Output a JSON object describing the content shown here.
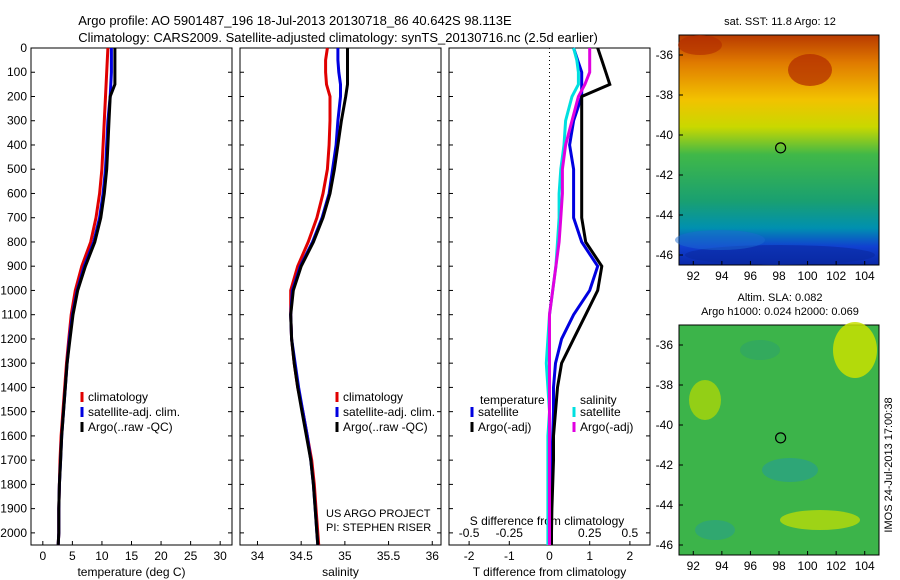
{
  "header": {
    "title_line1": "Argo profile: AO 5901487_196 18-Jul-2013 20130718_86 40.642S 98.113E",
    "title_line2": "Climatology: CARS2009. Satellite-adjusted climatology: synTS_20130716.nc (2.5d earlier)"
  },
  "colors": {
    "climatology": "#e00000",
    "satellite": "#0000e0",
    "argo": "#000000",
    "sal_satellite": "#00e0e0",
    "sal_argo": "#e000e0"
  },
  "side_text": {
    "project": "US ARGO PROJECT",
    "pi": "PI: STEPHEN RISER",
    "imos": "IMOS 24-Jul-2013 17:00:38"
  },
  "chart_data": [
    {
      "type": "line",
      "xlabel": "temperature (deg C)",
      "ylabel": "",
      "xlim": [
        -2,
        32
      ],
      "ylim": [
        2050,
        0
      ],
      "xticks": [
        "0",
        "5",
        "10",
        "15",
        "20",
        "25",
        "30"
      ],
      "yticks": [
        "0",
        "100",
        "200",
        "300",
        "400",
        "500",
        "600",
        "700",
        "800",
        "900",
        "1000",
        "1100",
        "1200",
        "1300",
        "1400",
        "1500",
        "1600",
        "1700",
        "1800",
        "1900",
        "2000"
      ],
      "legend": [
        "climatology",
        "satellite-adj. clim.",
        "Argo(..raw -QC)"
      ],
      "legend_position": "lower-center",
      "depth": [
        0,
        50,
        100,
        150,
        200,
        300,
        400,
        500,
        600,
        700,
        800,
        900,
        1000,
        1100,
        1200,
        1300,
        1400,
        1500,
        1600,
        1700,
        1800,
        1900,
        2000,
        2050
      ],
      "series": [
        {
          "name": "climatology",
          "values": [
            11.0,
            10.9,
            10.8,
            10.7,
            10.6,
            10.4,
            10.2,
            10.0,
            9.6,
            9.0,
            8.1,
            6.6,
            5.5,
            4.8,
            4.4,
            4.0,
            3.7,
            3.4,
            3.1,
            2.9,
            2.8,
            2.7,
            2.7,
            2.6
          ]
        },
        {
          "name": "satellite-adj. clim.",
          "values": [
            11.6,
            11.6,
            11.6,
            11.5,
            11.4,
            11.0,
            10.8,
            10.6,
            10.2,
            9.6,
            8.6,
            7.0,
            5.8,
            5.0,
            4.5,
            4.1,
            3.8,
            3.5,
            3.2,
            3.0,
            2.8,
            2.7,
            2.7,
            2.6
          ]
        },
        {
          "name": "Argo(..raw -QC)",
          "values": [
            12.2,
            12.2,
            12.2,
            12.2,
            11.4,
            11.2,
            11.0,
            10.8,
            10.4,
            9.8,
            8.8,
            7.2,
            5.9,
            5.1,
            4.6,
            4.1,
            3.8,
            3.5,
            3.2,
            3.0,
            2.8,
            2.7,
            2.7,
            2.6
          ]
        }
      ]
    },
    {
      "type": "line",
      "xlabel": "salinity",
      "ylabel": "",
      "xlim": [
        33.8,
        36.1
      ],
      "ylim": [
        2050,
        0
      ],
      "xticks": [
        "34",
        "34.5",
        "35",
        "35.5",
        "36"
      ],
      "legend": [
        "climatology",
        "satellite-adj. clim.",
        "Argo(..raw -QC)"
      ],
      "legend_position": "lower-right",
      "depth": [
        0,
        50,
        100,
        150,
        200,
        300,
        400,
        500,
        600,
        700,
        800,
        900,
        1000,
        1100,
        1200,
        1300,
        1400,
        1500,
        1600,
        1700,
        1800,
        1900,
        2000,
        2050
      ],
      "series": [
        {
          "name": "climatology",
          "values": [
            34.8,
            34.78,
            34.78,
            34.79,
            34.83,
            34.83,
            34.82,
            34.8,
            34.75,
            34.68,
            34.58,
            34.46,
            34.38,
            34.38,
            34.39,
            34.42,
            34.46,
            34.52,
            34.57,
            34.62,
            34.65,
            34.67,
            34.69,
            34.7
          ]
        },
        {
          "name": "satellite-adj. clim.",
          "values": [
            34.92,
            34.92,
            34.93,
            34.95,
            34.95,
            34.92,
            34.9,
            34.86,
            34.82,
            34.74,
            34.63,
            34.49,
            34.4,
            34.38,
            34.39,
            34.43,
            34.47,
            34.52,
            34.57,
            34.61,
            34.64,
            34.66,
            34.68,
            34.69
          ]
        },
        {
          "name": "Argo(..raw -QC)",
          "values": [
            35.03,
            35.03,
            35.03,
            35.03,
            35.01,
            34.96,
            34.92,
            34.88,
            34.83,
            34.75,
            34.64,
            34.5,
            34.41,
            34.38,
            34.39,
            34.42,
            34.46,
            34.51,
            34.56,
            34.61,
            34.64,
            34.66,
            34.68,
            34.69
          ]
        }
      ]
    },
    {
      "type": "line",
      "xlabel": "T difference from climatology",
      "xlabel_top": "S difference from climatology",
      "ylabel": "",
      "xlim": [
        -2.5,
        2.5
      ],
      "ylim": [
        2050,
        0
      ],
      "xticks": [
        "-2",
        "-1",
        "0",
        "1",
        "2"
      ],
      "xticks_top": [
        "-0.5",
        "-0.25",
        "0",
        "0.25",
        "0.5"
      ],
      "legend_headers": [
        "temperature",
        "salinity"
      ],
      "legend": [
        "satellite",
        "Argo(-adj)",
        "satellite",
        "Argo(-adj)"
      ],
      "legend_position": "lower-center",
      "depth": [
        0,
        50,
        100,
        150,
        200,
        300,
        400,
        500,
        600,
        700,
        800,
        900,
        1000,
        1100,
        1200,
        1300,
        1400,
        1500,
        1600,
        1700,
        1800,
        1900,
        2000,
        2050
      ],
      "series": [
        {
          "name": "temperature satellite",
          "values": [
            0.6,
            0.7,
            0.8,
            0.8,
            0.8,
            0.6,
            0.5,
            0.6,
            0.6,
            0.6,
            0.8,
            1.2,
            1.0,
            0.6,
            0.3,
            0.15,
            0.1,
            0.1,
            0.08,
            0.06,
            0.06,
            0.04,
            0.04,
            0.04
          ]
        },
        {
          "name": "temperature Argo(-adj)",
          "values": [
            1.2,
            1.3,
            1.4,
            1.5,
            0.8,
            0.8,
            0.8,
            0.8,
            0.8,
            0.8,
            0.9,
            1.3,
            1.2,
            0.9,
            0.6,
            0.3,
            0.2,
            0.15,
            0.1,
            0.1,
            0.08,
            0.06,
            0.05,
            0.05
          ]
        },
        {
          "name": "salinity satellite",
          "values": [
            0.15,
            0.17,
            0.18,
            0.18,
            0.14,
            0.1,
            0.09,
            0.07,
            0.06,
            0.06,
            0.05,
            0.04,
            0.02,
            0.0,
            -0.01,
            -0.02,
            -0.01,
            0.0,
            -0.01,
            -0.01,
            -0.01,
            -0.01,
            -0.01,
            -0.01
          ]
        },
        {
          "name": "salinity Argo(-adj)",
          "values": [
            0.25,
            0.25,
            0.25,
            0.22,
            0.18,
            0.14,
            0.1,
            0.08,
            0.08,
            0.07,
            0.06,
            0.04,
            0.02,
            0.0,
            0.0,
            0.0,
            0.0,
            0.0,
            0.0,
            0.0,
            0.0,
            0.0,
            0.0,
            0.0
          ]
        }
      ]
    },
    {
      "type": "heatmap",
      "title": "sat. SST: 11.8  Argo: 12",
      "xticks": [
        "92",
        "94",
        "96",
        "98",
        "100",
        "102",
        "104"
      ],
      "yticks": [
        "-36",
        "-38",
        "-40",
        "-42",
        "-44",
        "-46"
      ],
      "xlim": [
        91,
        105
      ],
      "ylim": [
        -46.5,
        -35
      ],
      "marker": {
        "lon": 98.113,
        "lat": -40.642
      }
    },
    {
      "type": "heatmap",
      "title": "Altim. SLA: 0.082",
      "subtitle": "Argo h1000: 0.024  h2000: 0.069",
      "xticks": [
        "92",
        "94",
        "96",
        "98",
        "100",
        "102",
        "104"
      ],
      "yticks": [
        "-36",
        "-38",
        "-40",
        "-42",
        "-44",
        "-46"
      ],
      "xlim": [
        91,
        105
      ],
      "ylim": [
        -46.5,
        -35
      ],
      "marker": {
        "lon": 98.113,
        "lat": -40.642
      }
    }
  ]
}
